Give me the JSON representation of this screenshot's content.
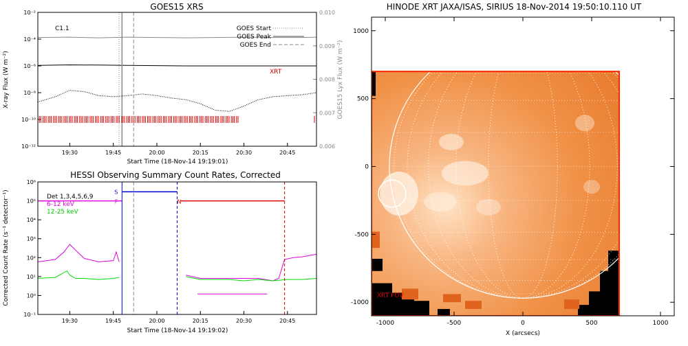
{
  "colors": {
    "goes_flux": "#000000",
    "goes_lya": "#888888",
    "xrt_marks": "#dd0000",
    "det_line": "#000000",
    "band_low": "#dd00dd",
    "band_mid": "#00dd00",
    "hessi_flag_s": "#0000cc",
    "hessi_flag_n": "#dd0000",
    "sun_orange": "#f08a3c",
    "sun_limb": "#ffffff"
  },
  "chart_data": [
    {
      "type": "line",
      "title": "GOES15 XRS",
      "xlabel": "Start Time (18-Nov-14 19:19:01)",
      "ylabel": "X-ray Flux (W m⁻²)",
      "ylabel_right": "GOES15 Lyx Flux (W m⁻²)",
      "annotation": "C1.1",
      "xlim": [
        "19:19",
        "20:55"
      ],
      "ylim": [
        "1e-12",
        "1e-2"
      ],
      "y_scale": "log",
      "y_ticks": [
        "10⁻¹²",
        "10⁻¹⁰",
        "10⁻⁸",
        "10⁻⁶",
        "10⁻⁴",
        "10⁻²"
      ],
      "ylim_right": [
        0.006,
        0.01
      ],
      "y_ticks_right": [
        "0.006",
        "0.007",
        "0.008",
        "0.009",
        "0.010"
      ],
      "x_ticks": [
        "19:30",
        "19:45",
        "20:00",
        "20:15",
        "20:30",
        "20:45"
      ],
      "legend": {
        "placement": "top-right",
        "entries": [
          "GOES Start",
          "GOES Peak",
          "GOES End"
        ]
      },
      "xrt_label": "XRT",
      "series": [
        {
          "x": [
            "19:19",
            "19:30",
            "19:40",
            "19:50",
            "20:00",
            "20:10",
            "20:20",
            "20:30",
            "20:40",
            "20:50",
            "20:55"
          ],
          "values": [
            1.1e-06,
            1.2e-06,
            1.15e-06,
            1.1e-06,
            1.05e-06,
            1e-06,
            1e-06,
            1e-06,
            1e-06,
            1e-06,
            1e-06
          ]
        },
        {
          "x": [
            "19:19",
            "19:25",
            "19:30",
            "19:35",
            "19:40",
            "19:45",
            "19:50",
            "19:55",
            "20:00",
            "20:05",
            "20:10",
            "20:15",
            "20:20",
            "20:25",
            "20:30",
            "20:35",
            "20:40",
            "20:45",
            "20:50",
            "20:55"
          ],
          "values": [
            2e-09,
            5e-09,
            1.5e-08,
            1.2e-08,
            6e-09,
            5e-09,
            6e-09,
            8e-09,
            6e-09,
            4e-09,
            3e-09,
            1.5e-09,
            5e-10,
            4e-10,
            1e-09,
            3e-09,
            5e-09,
            6e-09,
            7e-09,
            1e-08
          ]
        },
        {
          "x": [
            "19:19",
            "19:30",
            "19:40",
            "19:50",
            "20:00",
            "20:10",
            "20:20",
            "20:30",
            "20:40",
            "20:50",
            "20:55"
          ],
          "values": [
            0.00925,
            0.00926,
            0.00924,
            0.00926,
            0.00925,
            0.00924,
            0.00925,
            0.00926,
            0.00925,
            0.00925,
            0.00926
          ]
        }
      ],
      "goes_start": "19:47",
      "goes_peak": "19:48",
      "goes_end": "19:52",
      "xrt_obs_range": [
        "19:19",
        "20:28"
      ]
    },
    {
      "type": "line",
      "title": "HESSI Observing Summary Count Rates, Corrected",
      "xlabel": "Start Time (18-Nov-14 19:19:02)",
      "ylabel": "Corrected Count Rate (s⁻¹ detector⁻¹)",
      "xlim": [
        "19:19",
        "20:55"
      ],
      "ylim": [
        "1e-1",
        "1e6"
      ],
      "y_scale": "log",
      "y_ticks": [
        "10⁻¹",
        "10⁰",
        "10¹",
        "10²",
        "10³",
        "10⁴",
        "10⁵",
        "10⁶"
      ],
      "x_ticks": [
        "19:30",
        "19:45",
        "20:00",
        "20:15",
        "20:30",
        "20:45"
      ],
      "legend": {
        "placement": "top-left",
        "entries": [
          "Det 1,3,4,5,6,9",
          "6-12 keV",
          "12-25 keV"
        ]
      },
      "flags": {
        "s": "S",
        "f": "F",
        "n": "N"
      },
      "series": [
        {
          "x": [
            "19:19",
            "19:25",
            "19:28",
            "19:30",
            "19:32",
            "19:35",
            "19:40",
            "19:45",
            "19:46",
            "19:47"
          ],
          "values": [
            60,
            80,
            200,
            500,
            250,
            90,
            60,
            70,
            200,
            60
          ]
        },
        {
          "x": [
            "19:19",
            "19:25",
            "19:29",
            "19:30",
            "19:32",
            "19:35",
            "19:40",
            "19:45",
            "19:47"
          ],
          "values": [
            8,
            9,
            20,
            12,
            8,
            8,
            7,
            8,
            9
          ]
        },
        {
          "x": [
            "20:10",
            "20:15",
            "20:20",
            "20:25",
            "20:30",
            "20:35",
            "20:40",
            "20:42",
            "20:44",
            "20:47",
            "20:50",
            "20:55"
          ],
          "values": [
            12,
            8,
            8,
            8,
            8,
            8,
            6,
            8,
            80,
            100,
            110,
            150
          ]
        },
        {
          "x": [
            "20:10",
            "20:15",
            "20:20",
            "20:25",
            "20:30",
            "20:35",
            "20:40",
            "20:45",
            "20:50",
            "20:55"
          ],
          "values": [
            10,
            7,
            7,
            7,
            6,
            7,
            6,
            7,
            7,
            8
          ]
        },
        {
          "x": [
            "20:14",
            "20:20",
            "20:27",
            "20:34",
            "20:38"
          ],
          "values": [
            1.2,
            1.2,
            1.2,
            1.2,
            1.2
          ]
        }
      ],
      "vlines": {
        "saa_start": "19:48",
        "goes_end": "19:52",
        "saa_end": "20:07",
        "night_start": "20:44"
      },
      "flag_level_s": 300000.0,
      "flag_level_n": 100000.0,
      "flag_level_f": 100000.0
    },
    {
      "type": "heatmap",
      "title": "HINODE XRT JAXA/ISAS, SIRIUS 18-Nov-2014 19:50:10.110 UT",
      "xlabel": "X (arcsecs)",
      "ylabel": "",
      "xlim": [
        -1100,
        1100
      ],
      "ylim": [
        -1100,
        1100
      ],
      "x_ticks": [
        "-1000",
        "-500",
        "0",
        "500",
        "1000"
      ],
      "y_ticks": [
        "-1000",
        "-500",
        "0",
        "500",
        "1000"
      ],
      "fov_label": "XRT FOV",
      "fov": [
        -1100,
        -1100,
        700,
        700
      ],
      "sun_radius_arcsec": 970,
      "flare_circle": {
        "x": -950,
        "y": -200,
        "r": 100
      },
      "grid": true
    }
  ]
}
